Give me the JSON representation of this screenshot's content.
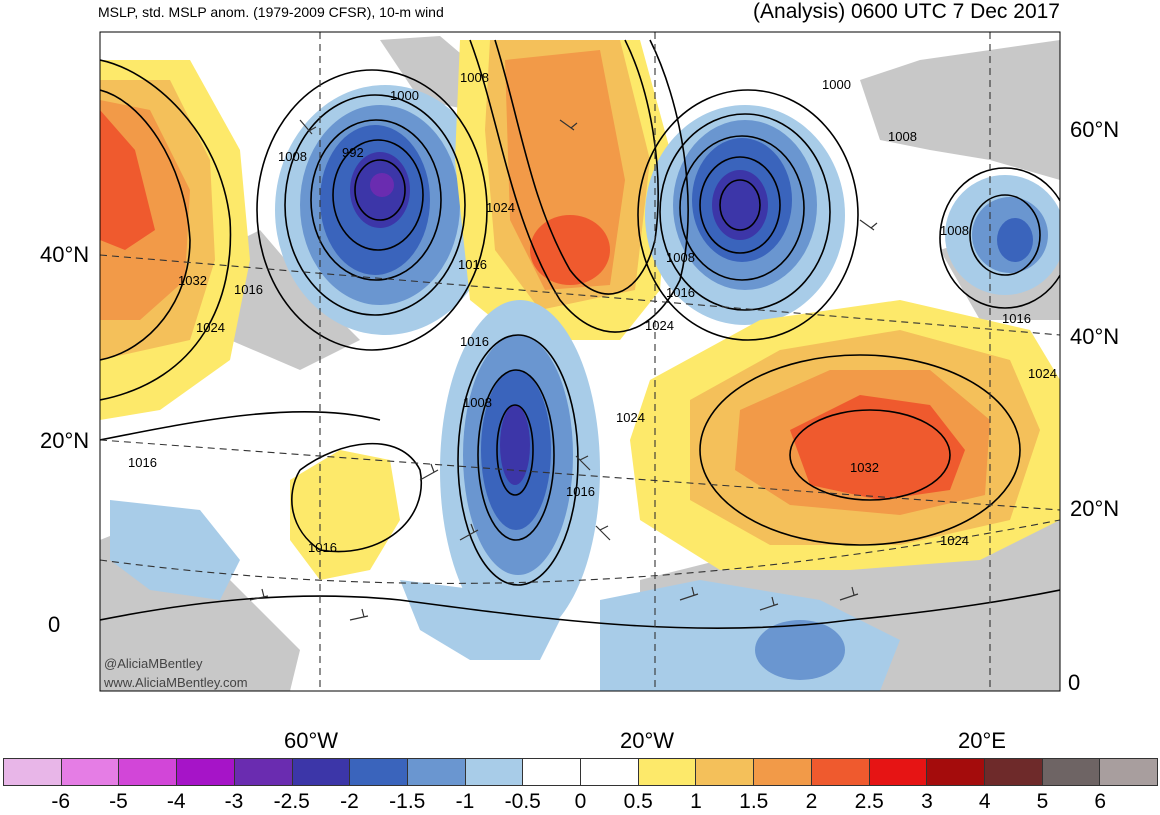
{
  "header": {
    "left_title": "MSLP, std. MSLP anom. (1979-2009 CFSR), 10-m wind",
    "right_title": "(Analysis) 0600 UTC 7 Dec 2017"
  },
  "lat_labels_left": [
    "40°N",
    "20°N",
    "0"
  ],
  "lat_labels_right": [
    "60°N",
    "40°N",
    "20°N",
    "0"
  ],
  "lon_labels": [
    "60°W",
    "20°W",
    "20°E"
  ],
  "isobar_labels": [
    "1008",
    "1000",
    "992",
    "1008",
    "1024",
    "1016",
    "1032",
    "1016",
    "1024",
    "1016",
    "1008",
    "1024",
    "1016",
    "1016",
    "1016",
    "1008",
    "1016",
    "1024",
    "1000",
    "1008",
    "1008",
    "1016",
    "1024",
    "1032",
    "1024"
  ],
  "credits": [
    "@AliciaMBentley",
    "www.AliciaMBentley.com"
  ],
  "colorbar": {
    "colors": [
      "#e8b6e8",
      "#e57de5",
      "#d246d8",
      "#a614c8",
      "#6a2cb0",
      "#3c36a8",
      "#3a64bc",
      "#6a96d0",
      "#a8cce8",
      "#ffffff",
      "#ffffff",
      "#fde96a",
      "#f4c05a",
      "#f29a48",
      "#ef5a2e",
      "#e61414",
      "#a40c0c",
      "#6e2a2a",
      "#6e6464",
      "#a89e9e"
    ],
    "tick_labels": [
      "-6",
      "-5",
      "-4",
      "-3",
      "-2.5",
      "-2",
      "-1.5",
      "-1",
      "-0.5",
      "0",
      "0.5",
      "1",
      "1.5",
      "2",
      "2.5",
      "3",
      "4",
      "5",
      "6"
    ]
  },
  "colors": {
    "strong_negative": "#3c36a8",
    "negative": "#6a96d0",
    "weak_negative": "#a8cce8",
    "weak_positive": "#fde96a",
    "positive": "#f29a48",
    "strong_positive": "#ef5a2e",
    "land_gray": "#c8c8c8"
  }
}
